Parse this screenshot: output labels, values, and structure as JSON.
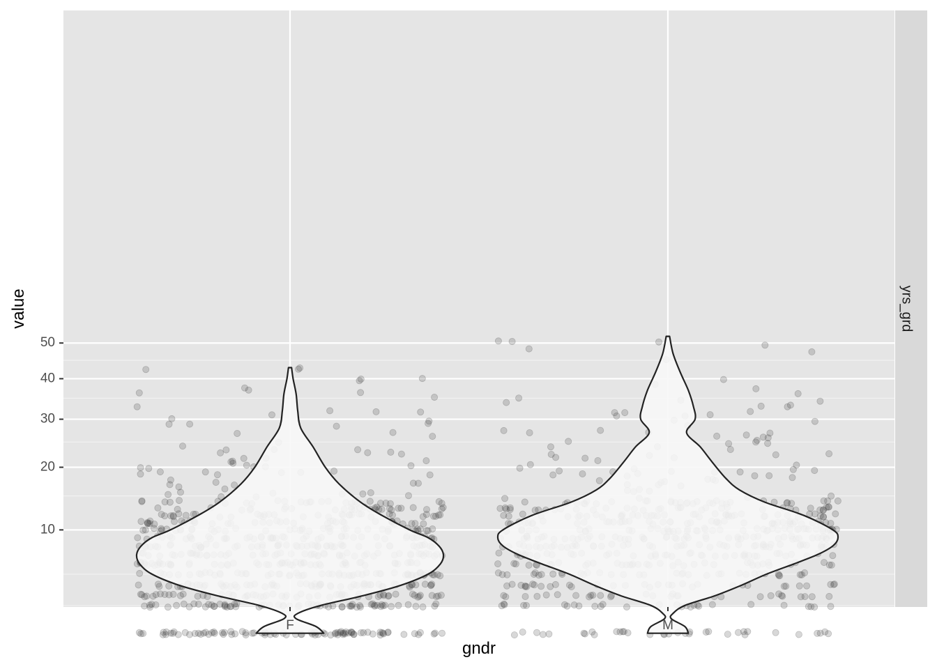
{
  "chart_data": {
    "type": "violin",
    "xlabel": "gndr",
    "ylabel": "value",
    "facet_label": "yrs_grd",
    "categories": [
      "F",
      "M"
    ],
    "y_scale": "sqrt",
    "ylim": [
      1,
      55
    ],
    "y_major_ticks": [
      10,
      20,
      30,
      40,
      50
    ],
    "y_minor_ticks": [
      2.5,
      5,
      15,
      25,
      35,
      45
    ],
    "grid": true,
    "colors": {
      "panel": "#e5e5e5",
      "grid": "#ffffff",
      "strip": "#d9d9d9",
      "violin_fill": "#f7f7f7",
      "violin_stroke": "#222222",
      "points": "#3a3a3a"
    },
    "violins": [
      {
        "category": "F",
        "profile": [
          [
            1,
            0.22
          ],
          [
            1.3,
            0.17
          ],
          [
            1.7,
            0.04
          ],
          [
            2.0,
            0.05
          ],
          [
            2.5,
            0.2
          ],
          [
            3.2,
            0.48
          ],
          [
            4,
            0.72
          ],
          [
            5,
            0.9
          ],
          [
            6,
            0.98
          ],
          [
            7,
            1.0
          ],
          [
            8,
            0.97
          ],
          [
            9,
            0.9
          ],
          [
            10,
            0.78
          ],
          [
            12,
            0.6
          ],
          [
            14,
            0.46
          ],
          [
            17,
            0.32
          ],
          [
            20,
            0.23
          ],
          [
            24,
            0.15
          ],
          [
            28,
            0.07
          ],
          [
            32,
            0.05
          ],
          [
            36,
            0.04
          ],
          [
            40,
            0.02
          ],
          [
            43,
            0.01
          ]
        ]
      },
      {
        "category": "M",
        "profile": [
          [
            1,
            0.12
          ],
          [
            1.3,
            0.1
          ],
          [
            1.7,
            0.02
          ],
          [
            2.0,
            0.03
          ],
          [
            2.5,
            0.1
          ],
          [
            3.2,
            0.28
          ],
          [
            4,
            0.43
          ],
          [
            5,
            0.58
          ],
          [
            6,
            0.74
          ],
          [
            7,
            0.88
          ],
          [
            8,
            0.97
          ],
          [
            9,
            1.0
          ],
          [
            10,
            0.97
          ],
          [
            12,
            0.8
          ],
          [
            14,
            0.57
          ],
          [
            16,
            0.42
          ],
          [
            18,
            0.34
          ],
          [
            21,
            0.26
          ],
          [
            24,
            0.19
          ],
          [
            27,
            0.11
          ],
          [
            30,
            0.16
          ],
          [
            33,
            0.15
          ],
          [
            37,
            0.12
          ],
          [
            42,
            0.07
          ],
          [
            47,
            0.03
          ],
          [
            52,
            0.01
          ]
        ]
      }
    ],
    "jitter_points": [
      {
        "category": "F",
        "discrete_levels": [
          [
            1,
            90
          ],
          [
            2.5,
            70
          ],
          [
            3.2,
            60
          ],
          [
            4,
            66
          ],
          [
            5,
            62
          ],
          [
            6,
            58
          ],
          [
            7,
            55
          ],
          [
            8,
            52
          ],
          [
            9,
            48
          ],
          [
            10,
            44
          ],
          [
            11,
            40
          ],
          [
            12,
            36
          ],
          [
            13,
            30
          ],
          [
            14,
            24
          ]
        ],
        "continuous": [
          [
            14,
            22,
            40
          ],
          [
            22,
            32,
            22
          ],
          [
            32,
            44,
            12
          ]
        ]
      },
      {
        "category": "M",
        "discrete_levels": [
          [
            1,
            35
          ],
          [
            2.5,
            28
          ],
          [
            3.2,
            30
          ],
          [
            4,
            34
          ],
          [
            5,
            36
          ],
          [
            6,
            40
          ],
          [
            7,
            44
          ],
          [
            8,
            50
          ],
          [
            9,
            52
          ],
          [
            10,
            50
          ],
          [
            11,
            46
          ],
          [
            12,
            42
          ],
          [
            13,
            36
          ],
          [
            14,
            30
          ]
        ],
        "continuous": [
          [
            14,
            22,
            42
          ],
          [
            22,
            32,
            30
          ],
          [
            32,
            52,
            18
          ]
        ]
      }
    ]
  }
}
